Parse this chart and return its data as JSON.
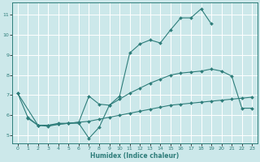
{
  "xlabel": "Humidex (Indice chaleur)",
  "bg_color": "#cce8ea",
  "grid_color": "#f0f0f0",
  "line_color": "#2e7d7a",
  "xlim": [
    -0.5,
    23.5
  ],
  "ylim": [
    4.6,
    11.6
  ],
  "xticks": [
    0,
    1,
    2,
    3,
    4,
    5,
    6,
    7,
    8,
    9,
    10,
    11,
    12,
    13,
    14,
    15,
    16,
    17,
    18,
    19,
    20,
    21,
    22,
    23
  ],
  "yticks": [
    5,
    6,
    7,
    8,
    9,
    10,
    11
  ],
  "line1_x": [
    0,
    1,
    2,
    3,
    4,
    5,
    6,
    7,
    8,
    9,
    10,
    11,
    12,
    13,
    14,
    15,
    16,
    17,
    18,
    19
  ],
  "line1_y": [
    7.1,
    5.9,
    5.5,
    5.5,
    5.6,
    5.6,
    5.6,
    4.85,
    5.4,
    6.5,
    6.95,
    9.1,
    9.55,
    9.75,
    9.6,
    10.25,
    10.85,
    10.85,
    11.3,
    10.55
  ],
  "line2_x": [
    0,
    2,
    3,
    4,
    5,
    6,
    7,
    8,
    9,
    10,
    11,
    12,
    13,
    14,
    15,
    16,
    17,
    18,
    19,
    20,
    21,
    22,
    23
  ],
  "line2_y": [
    7.1,
    5.5,
    5.45,
    5.55,
    5.6,
    5.65,
    6.95,
    6.55,
    6.5,
    6.8,
    7.1,
    7.35,
    7.6,
    7.8,
    8.0,
    8.1,
    8.15,
    8.2,
    8.3,
    8.2,
    7.95,
    6.35,
    6.35
  ],
  "line3_x": [
    1,
    2,
    3,
    4,
    5,
    6,
    7,
    8,
    9,
    10,
    11,
    12,
    13,
    14,
    15,
    16,
    17,
    18,
    19,
    20,
    21,
    22,
    23
  ],
  "line3_y": [
    5.85,
    5.5,
    5.5,
    5.55,
    5.6,
    5.65,
    5.7,
    5.8,
    5.9,
    6.0,
    6.1,
    6.2,
    6.3,
    6.4,
    6.5,
    6.55,
    6.6,
    6.65,
    6.7,
    6.75,
    6.8,
    6.85,
    6.9
  ]
}
